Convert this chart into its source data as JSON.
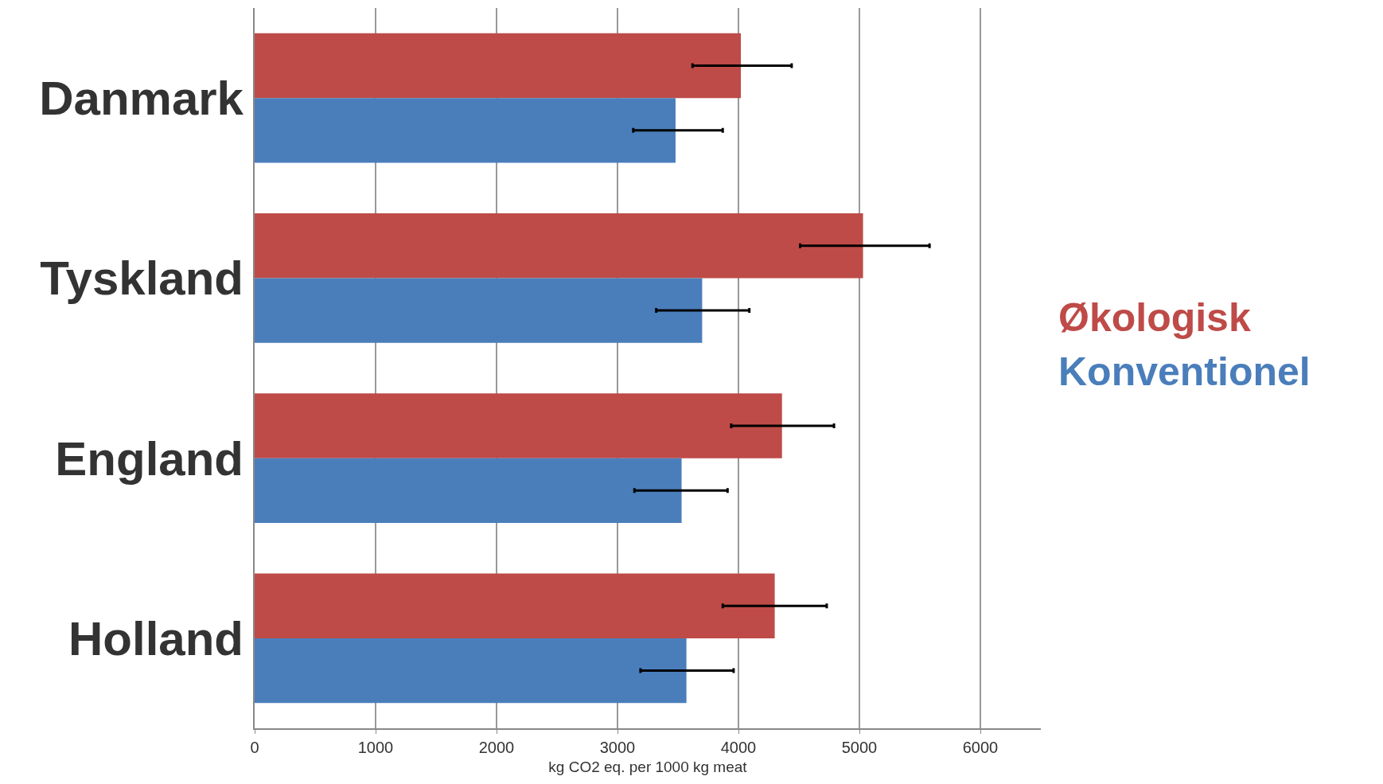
{
  "chart_data": {
    "type": "bar",
    "orientation": "horizontal",
    "categories": [
      "Danmark",
      "Tyskland",
      "England",
      "Holland"
    ],
    "xlabel": "kg CO2 eq. per 1000 kg meat",
    "xlim": [
      0,
      6500
    ],
    "xticks": [
      0,
      1000,
      2000,
      3000,
      4000,
      5000,
      6000
    ],
    "grid": "x",
    "legend": "right",
    "series": [
      {
        "name": "Økologisk",
        "color": "#be4b48",
        "values": [
          4020,
          5030,
          4360,
          4300
        ],
        "errors": [
          [
            3620,
            4440
          ],
          [
            4510,
            5580
          ],
          [
            3940,
            4790
          ],
          [
            3870,
            4730
          ]
        ]
      },
      {
        "name": "Konventionel",
        "color": "#4a7ebb",
        "values": [
          3480,
          3700,
          3530,
          3570
        ],
        "errors": [
          [
            3130,
            3870
          ],
          [
            3320,
            4090
          ],
          [
            3140,
            3910
          ],
          [
            3190,
            3960
          ]
        ]
      }
    ]
  }
}
